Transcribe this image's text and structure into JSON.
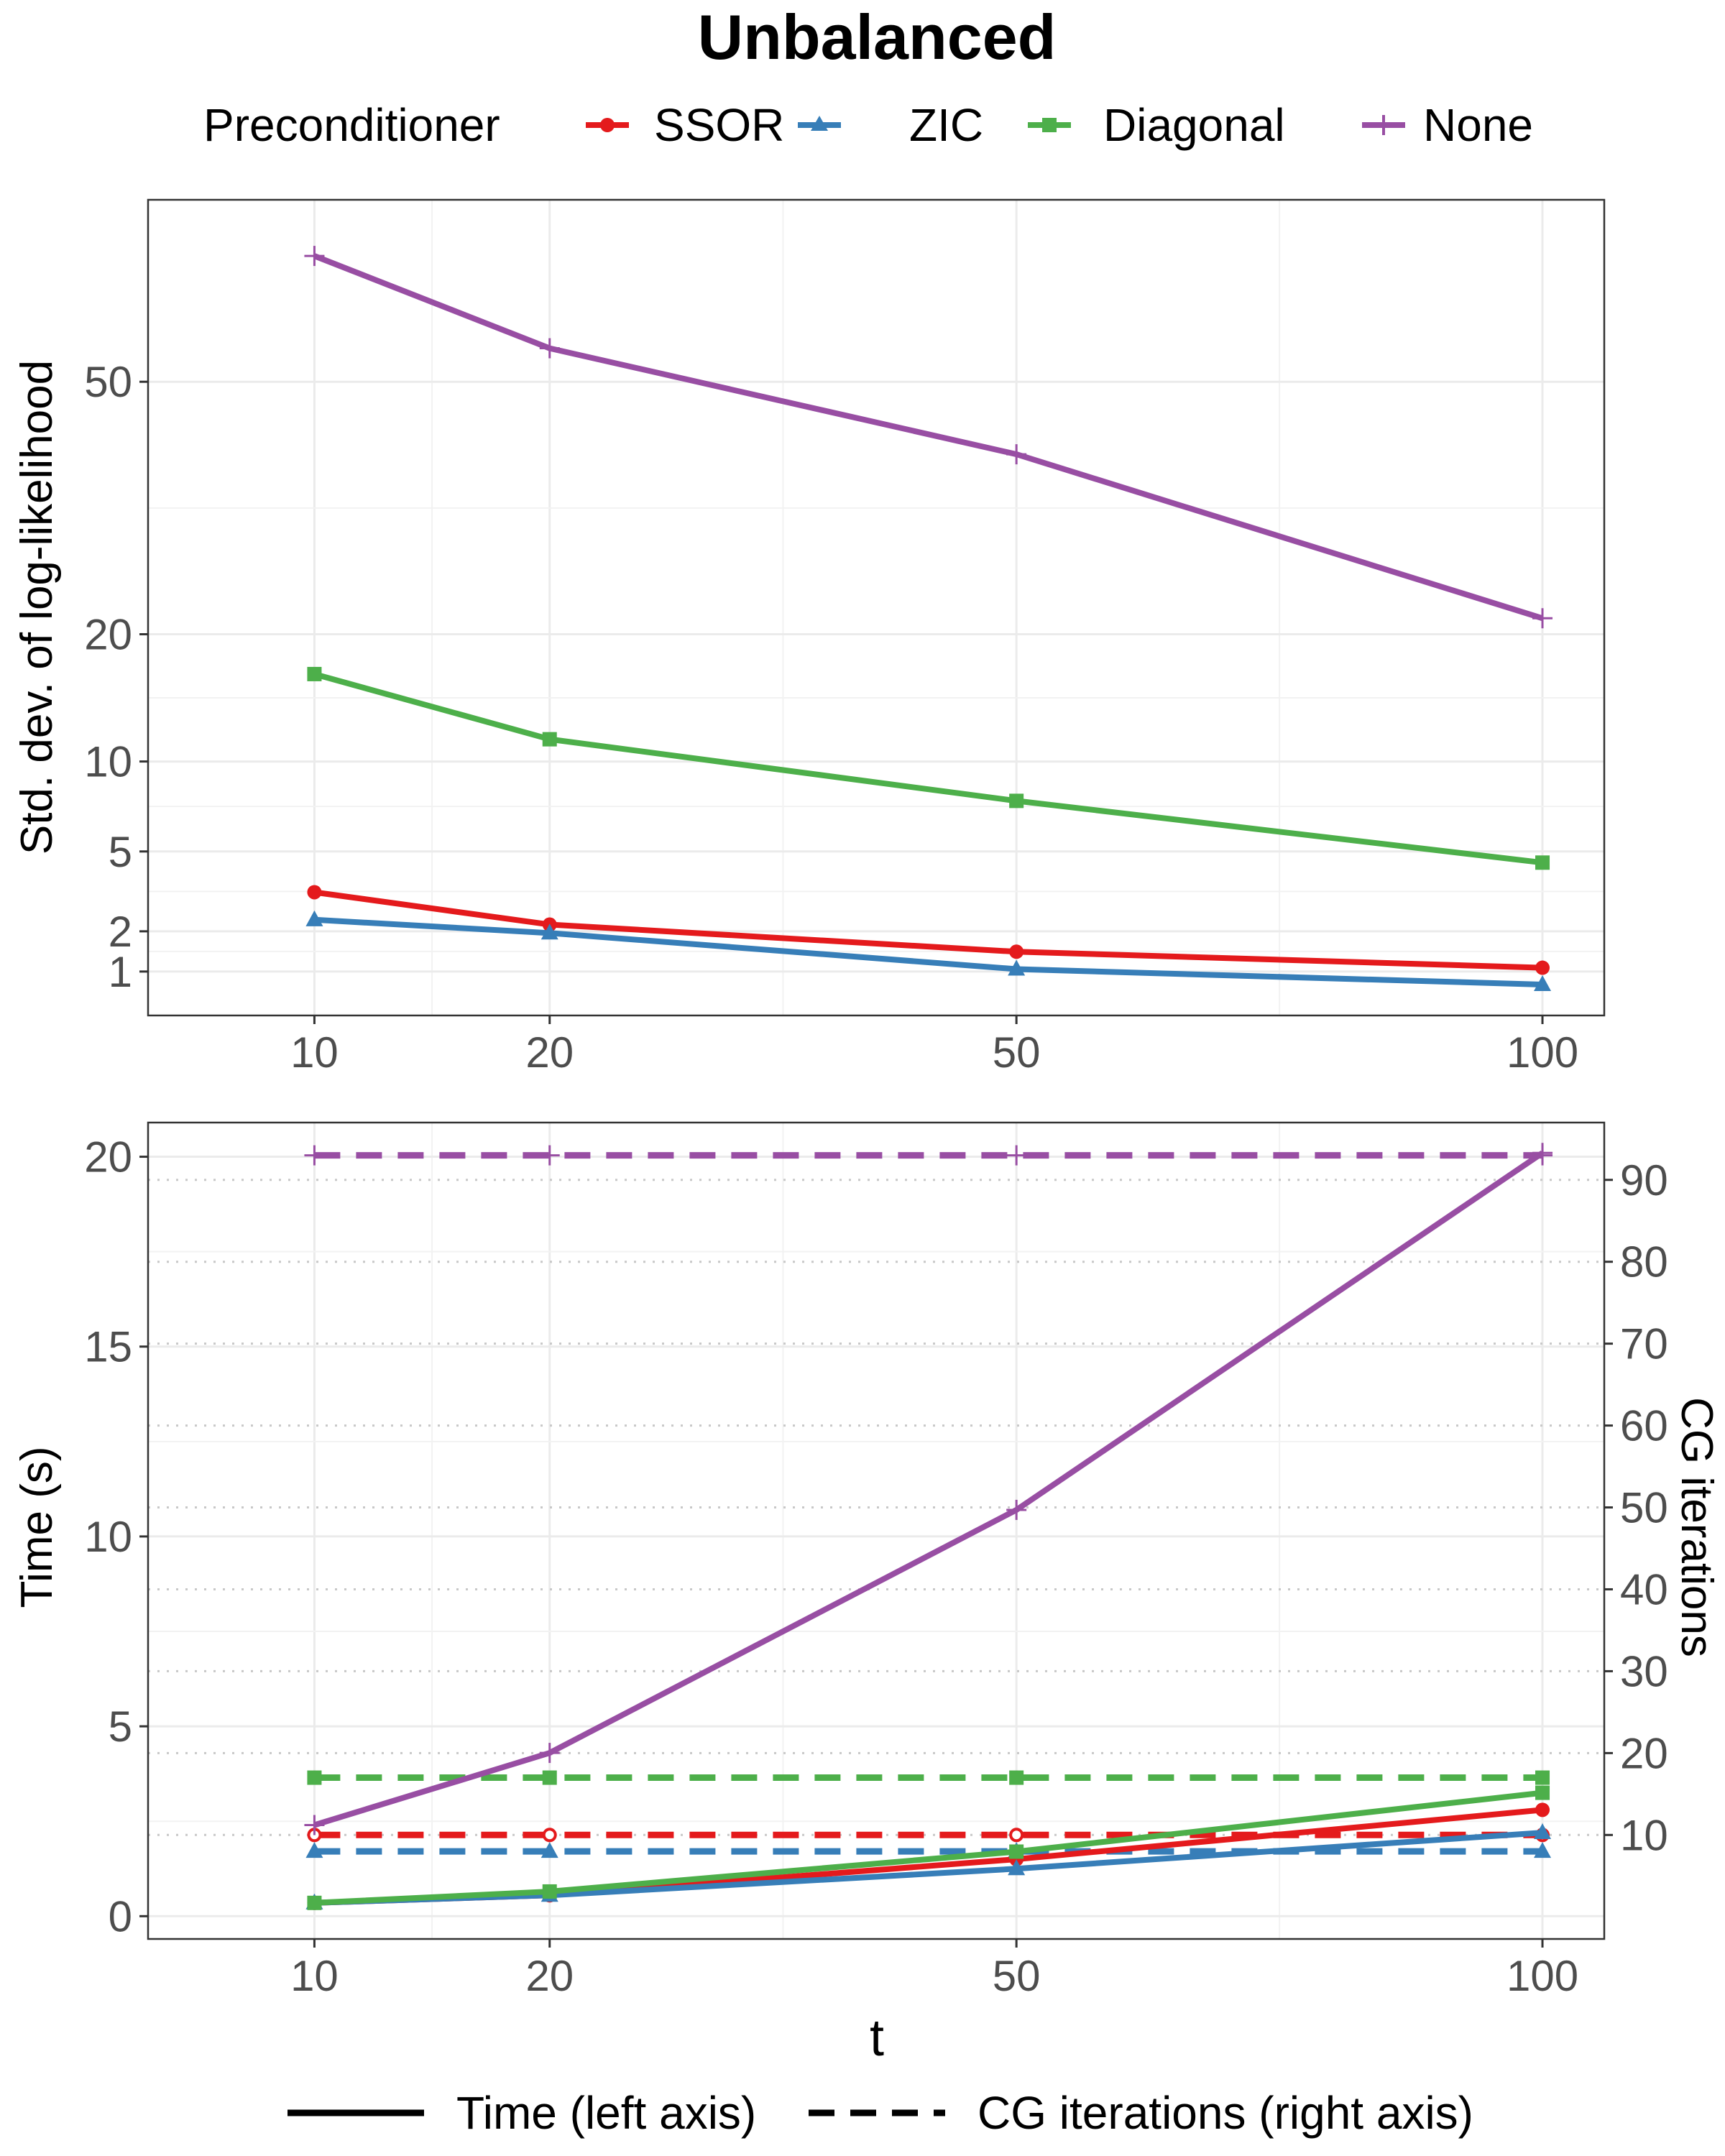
{
  "title": "Unbalanced",
  "legend": {
    "title": "Preconditioner",
    "items": [
      {
        "name": "SSOR",
        "color": "#E41A1C",
        "marker": "circle"
      },
      {
        "name": "ZIC",
        "color": "#377EB8",
        "marker": "triangle"
      },
      {
        "name": "Diagonal",
        "color": "#4DAF4A",
        "marker": "square"
      },
      {
        "name": "None",
        "color": "#984EA3",
        "marker": "plus"
      }
    ]
  },
  "linetype_legend": {
    "solid": "Time (left axis)",
    "dashed": "CG iterations (right axis)"
  },
  "chart_data": [
    {
      "type": "line",
      "title": "",
      "xlabel": "",
      "ylabel": "Std. dev. of log-likelihood",
      "x_scale": "sqrt",
      "y_scale": "sqrt",
      "x_ticks": [
        10,
        20,
        50,
        100
      ],
      "y_ticks": [
        1,
        2,
        5,
        10,
        20,
        50
      ],
      "xlim": [
        5,
        107
      ],
      "ylim": [
        0.3,
        80
      ],
      "x": [
        10,
        20,
        50,
        100
      ],
      "series": [
        {
          "name": "SSOR",
          "values": [
            3.3,
            2.2,
            1.45,
            1.08
          ]
        },
        {
          "name": "ZIC",
          "values": [
            2.35,
            1.95,
            1.05,
            0.75
          ]
        },
        {
          "name": "Diagonal",
          "values": [
            16.5,
            11.5,
            7.6,
            4.5
          ]
        },
        {
          "name": "None",
          "values": [
            70,
            55,
            40,
            21.5
          ]
        }
      ]
    },
    {
      "type": "line",
      "title": "",
      "xlabel": "t",
      "ylabel": "Time (s)",
      "y2label": "CG iterations",
      "x_scale": "sqrt",
      "x_ticks": [
        10,
        20,
        50,
        100
      ],
      "y_ticks": [
        0,
        5,
        10,
        15,
        20
      ],
      "y2_ticks": [
        10,
        20,
        30,
        40,
        50,
        60,
        70,
        80,
        90
      ],
      "xlim": [
        5,
        107
      ],
      "ylim": [
        -0.6,
        20.9
      ],
      "y2lim": [
        -2.7,
        97
      ],
      "x": [
        10,
        20,
        50,
        100
      ],
      "time_series": [
        {
          "name": "SSOR",
          "values": [
            0.35,
            0.55,
            1.5,
            2.8
          ]
        },
        {
          "name": "ZIC",
          "values": [
            0.35,
            0.55,
            1.25,
            2.2
          ]
        },
        {
          "name": "Diagonal",
          "values": [
            0.35,
            0.65,
            1.7,
            3.25
          ]
        },
        {
          "name": "None",
          "values": [
            2.4,
            4.3,
            10.7,
            20.1
          ]
        }
      ],
      "iteration_series": [
        {
          "name": "SSOR",
          "values": [
            10,
            10,
            10,
            10
          ]
        },
        {
          "name": "ZIC",
          "values": [
            8,
            8,
            8,
            8
          ]
        },
        {
          "name": "Diagonal",
          "values": [
            17,
            17,
            17,
            17
          ]
        },
        {
          "name": "None",
          "values": [
            93,
            93,
            93,
            93
          ]
        }
      ]
    }
  ]
}
